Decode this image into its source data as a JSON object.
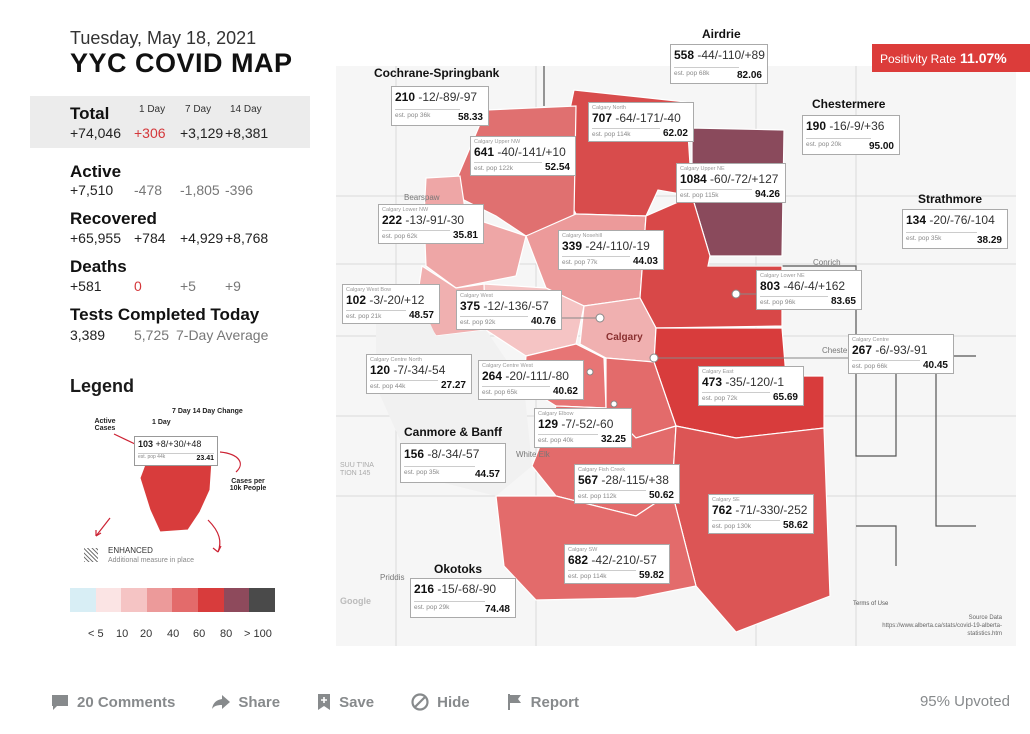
{
  "header": {
    "date": "Tuesday, May 18, 2021",
    "title": "YYC COVID MAP"
  },
  "stats": {
    "col_headers": [
      "1 Day",
      "7 Day",
      "14 Day"
    ],
    "total": {
      "label": "Total",
      "value": "+74,046",
      "d1": "+306",
      "d7": "+3,129",
      "d14": "+8,381"
    },
    "active": {
      "label": "Active",
      "value": "+7,510",
      "d1": "-478",
      "d7": "-1,805",
      "d14": "-396"
    },
    "recovered": {
      "label": "Recovered",
      "value": "+65,955",
      "d1": "+784",
      "d7": "+4,929",
      "d14": "+8,768"
    },
    "deaths": {
      "label": "Deaths",
      "value": "+581",
      "d1": "0",
      "d7": "+5",
      "d14": "+9"
    },
    "tests": {
      "label": "Tests Completed Today",
      "value": "3,389",
      "avg": "5,725",
      "avg_label": "7-Day Average"
    }
  },
  "legend": {
    "title": "Legend",
    "active_cases": "Active Cases",
    "one_day": "1 Day",
    "seven_fourteen": "7 Day 14 Day Change",
    "sample_count": "103",
    "sample_changes": "+8/+30/+48",
    "sample_pop": "est. pop 44k",
    "sample_rate": "23.41",
    "cases_per": "Cases per 10k People",
    "enhanced": "ENHANCED",
    "enhanced_sub": "Additional measure in place",
    "scale_colors": [
      "#d8eef5",
      "#fbe4e4",
      "#f5c4c4",
      "#ec9a9a",
      "#e36b6b",
      "#d83c3c",
      "#8e4a5c",
      "#4a4a4a"
    ],
    "scale_labels": [
      "< 5",
      "10",
      "20",
      "40",
      "60",
      "80",
      "> 100"
    ]
  },
  "positivity": {
    "label": "Positivity Rate",
    "value": "11.07%"
  },
  "region_titles": {
    "cochrane": "Cochrane-Springbank",
    "airdrie": "Airdrie",
    "chestermere": "Chestermere",
    "strathmore": "Strathmore",
    "canmore": "Canmore & Banff",
    "okotoks": "Okotoks"
  },
  "regions": {
    "airdrie": {
      "count": "558",
      "changes": "-44/-110/+89",
      "pop": "est. pop 68k",
      "rate": "82.06"
    },
    "cochrane": {
      "count": "210",
      "changes": "-12/-89/-97",
      "pop": "est. pop 36k",
      "rate": "58.33"
    },
    "chestermere": {
      "count": "190",
      "changes": "-16/-9/+36",
      "pop": "est. pop 20k",
      "rate": "95.00"
    },
    "strathmore": {
      "count": "134",
      "changes": "-20/-76/-104",
      "pop": "est. pop 35k",
      "rate": "38.29"
    },
    "canmore": {
      "count": "156",
      "changes": "-8/-34/-57",
      "pop": "est. pop 35k",
      "rate": "44.57"
    },
    "okotoks": {
      "count": "216",
      "changes": "-15/-68/-90",
      "pop": "est. pop 29k",
      "rate": "74.48"
    },
    "north": {
      "name": "Calgary North",
      "count": "707",
      "changes": "-64/-171/-40",
      "pop": "est. pop 114k",
      "rate": "62.02"
    },
    "upper_nw": {
      "name": "Calgary Upper NW",
      "count": "641",
      "changes": "-40/-141/+10",
      "pop": "est. pop 122k",
      "rate": "52.54"
    },
    "upper_ne": {
      "name": "Calgary Upper NE",
      "count": "1084",
      "changes": "-60/-72/+127",
      "pop": "est. pop 115k",
      "rate": "94.26"
    },
    "lower_nw": {
      "name": "Calgary Lower NW",
      "count": "222",
      "changes": "-13/-91/-30",
      "pop": "est. pop 62k",
      "rate": "35.81"
    },
    "nosehill": {
      "name": "Calgary Nosehill",
      "count": "339",
      "changes": "-24/-110/-19",
      "pop": "est. pop 77k",
      "rate": "44.03"
    },
    "lower_ne": {
      "name": "Calgary Lower NE",
      "count": "803",
      "changes": "-46/-4/+162",
      "pop": "est. pop 96k",
      "rate": "83.65"
    },
    "west_bow": {
      "name": "Calgary West Bow",
      "count": "102",
      "changes": "-3/-20/+12",
      "pop": "est. pop 21k",
      "rate": "48.57"
    },
    "west": {
      "name": "Calgary West",
      "count": "375",
      "changes": "-12/-136/-57",
      "pop": "est. pop 92k",
      "rate": "40.76"
    },
    "centre": {
      "name": "Calgary Centre",
      "count": "267",
      "changes": "-6/-93/-91",
      "pop": "est. pop 66k",
      "rate": "40.45"
    },
    "centre_north": {
      "name": "Calgary Centre North",
      "count": "120",
      "changes": "-7/-34/-54",
      "pop": "est. pop 44k",
      "rate": "27.27"
    },
    "centre_west": {
      "name": "Calgary Centre West",
      "count": "264",
      "changes": "-20/-111/-80",
      "pop": "est. pop 65k",
      "rate": "40.62"
    },
    "east": {
      "name": "Calgary East",
      "count": "473",
      "changes": "-35/-120/-1",
      "pop": "est. pop 72k",
      "rate": "65.69"
    },
    "elbow": {
      "name": "Calgary Elbow",
      "count": "129",
      "changes": "-7/-52/-60",
      "pop": "est. pop 40k",
      "rate": "32.25"
    },
    "fish_creek": {
      "name": "Calgary Fish Creek",
      "count": "567",
      "changes": "-28/-115/+38",
      "pop": "est. pop 112k",
      "rate": "50.62"
    },
    "se": {
      "name": "Calgary SE",
      "count": "762",
      "changes": "-71/-330/-252",
      "pop": "est. pop 130k",
      "rate": "58.62"
    },
    "sw": {
      "name": "Calgary SW",
      "count": "682",
      "changes": "-42/-210/-57",
      "pop": "est. pop 114k",
      "rate": "59.82"
    }
  },
  "map_labels": {
    "calgary": "Calgary",
    "bearspaw": "Bearspaw",
    "conrich": "Conrich",
    "chestermere_town": "Cheste",
    "white_elk": "White Elk",
    "priddis": "Priddis",
    "google": "Google",
    "terms": "Terms of Use",
    "tsuutina": "SUU T'INA\nTION 145"
  },
  "source": {
    "title": "Source Data",
    "url": "https://www.alberta.ca/stats/covid-19-alberta-statistics.htm"
  },
  "actions": {
    "comments": "20 Comments",
    "share": "Share",
    "save": "Save",
    "hide": "Hide",
    "report": "Report",
    "upvoted": "95% Upvoted"
  }
}
